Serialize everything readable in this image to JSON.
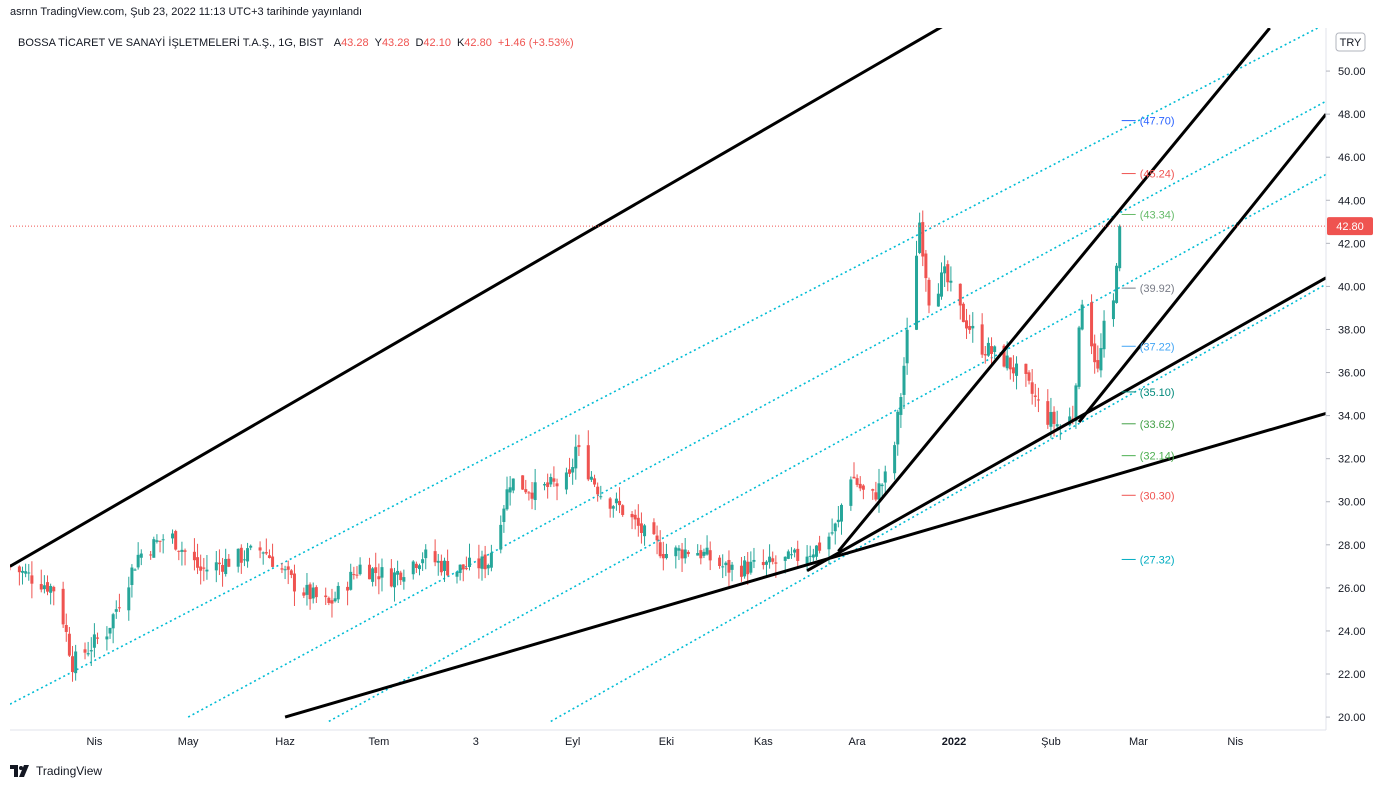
{
  "header": {
    "published": "asrnn TradingView.com, Şub 23, 2022 11:13 UTC+3 tarihinde yayınlandı",
    "symbol": "BOSSA TİCARET VE SANAYİ İŞLETMELERİ T.A.Ş., 1G, BIST",
    "ohlc": [
      {
        "k": "A",
        "v": "43.28"
      },
      {
        "k": "Y",
        "v": "43.28"
      },
      {
        "k": "D",
        "v": "42.10"
      },
      {
        "k": "K",
        "v": "42.80"
      }
    ],
    "change": "+1.46 (+3.53%)"
  },
  "currency": "TRY",
  "footer": {
    "brand": "TradingView",
    "logo": "tradingview-logo-icon"
  },
  "colors": {
    "up": "#26a69a",
    "down": "#ef5350",
    "channel": "#00bcd4",
    "trend": "#000000",
    "last": "#ef5350"
  },
  "chart_data": {
    "type": "candlestick",
    "title": "BOSSA TİCARET VE SANAYİ İŞLETMELERİ T.A.Ş., 1G, BIST",
    "ylim": [
      19.4,
      52.0
    ],
    "xlim": [
      "2021-03-05",
      "2022-04-30"
    ],
    "y_ticks": [
      "20.00",
      "22.00",
      "24.00",
      "26.00",
      "28.00",
      "30.00",
      "32.00",
      "34.00",
      "36.00",
      "38.00",
      "40.00",
      "42.00",
      "44.00",
      "46.00",
      "48.00",
      "50.00"
    ],
    "x_ticks": [
      {
        "date": "2021-04-01",
        "label": "Nis",
        "bold": false
      },
      {
        "date": "2021-05-01",
        "label": "May",
        "bold": false
      },
      {
        "date": "2021-06-01",
        "label": "Haz",
        "bold": false
      },
      {
        "date": "2021-07-01",
        "label": "Tem",
        "bold": false
      },
      {
        "date": "2021-08-01",
        "label": "3",
        "bold": false
      },
      {
        "date": "2021-09-01",
        "label": "Eyl",
        "bold": false
      },
      {
        "date": "2021-10-01",
        "label": "Eki",
        "bold": false
      },
      {
        "date": "2021-11-01",
        "label": "Kas",
        "bold": false
      },
      {
        "date": "2021-12-01",
        "label": "Ara",
        "bold": false
      },
      {
        "date": "2022-01-01",
        "label": "2022",
        "bold": true
      },
      {
        "date": "2022-02-01",
        "label": "Şub",
        "bold": false
      },
      {
        "date": "2022-03-01",
        "label": "Mar",
        "bold": false
      },
      {
        "date": "2022-04-01",
        "label": "Nis",
        "bold": false
      }
    ],
    "last_price": "42.80",
    "anchors": [
      {
        "date": "2021-03-05",
        "price": 27.0
      },
      {
        "date": "2021-03-20",
        "price": 25.9
      },
      {
        "date": "2021-03-25",
        "price": 22.5
      },
      {
        "date": "2021-04-05",
        "price": 24.0
      },
      {
        "date": "2021-04-15",
        "price": 27.5
      },
      {
        "date": "2021-04-25",
        "price": 28.5
      },
      {
        "date": "2021-05-05",
        "price": 26.8
      },
      {
        "date": "2021-05-15",
        "price": 27.3
      },
      {
        "date": "2021-05-25",
        "price": 27.8
      },
      {
        "date": "2021-06-05",
        "price": 26.0
      },
      {
        "date": "2021-06-15",
        "price": 25.2
      },
      {
        "date": "2021-06-25",
        "price": 27.0
      },
      {
        "date": "2021-07-05",
        "price": 26.5
      },
      {
        "date": "2021-07-15",
        "price": 27.5
      },
      {
        "date": "2021-07-25",
        "price": 26.8
      },
      {
        "date": "2021-08-05",
        "price": 27.2
      },
      {
        "date": "2021-08-12",
        "price": 31.0
      },
      {
        "date": "2021-08-20",
        "price": 30.5
      },
      {
        "date": "2021-08-31",
        "price": 31.0
      },
      {
        "date": "2021-09-02",
        "price": 32.5
      },
      {
        "date": "2021-09-10",
        "price": 30.4
      },
      {
        "date": "2021-09-18",
        "price": 29.5
      },
      {
        "date": "2021-09-25",
        "price": 28.3
      },
      {
        "date": "2021-10-01",
        "price": 27.6
      },
      {
        "date": "2021-10-10",
        "price": 27.8
      },
      {
        "date": "2021-10-20",
        "price": 26.9
      },
      {
        "date": "2021-11-01",
        "price": 27.0
      },
      {
        "date": "2021-11-10",
        "price": 27.3
      },
      {
        "date": "2021-11-20",
        "price": 28.0
      },
      {
        "date": "2021-11-25",
        "price": 29.0
      },
      {
        "date": "2021-11-28",
        "price": 31.5
      },
      {
        "date": "2021-12-05",
        "price": 30.0
      },
      {
        "date": "2021-12-12",
        "price": 31.5
      },
      {
        "date": "2021-12-15",
        "price": 35.0
      },
      {
        "date": "2021-12-18",
        "price": 39.0
      },
      {
        "date": "2021-12-21",
        "price": 43.0
      },
      {
        "date": "2021-12-24",
        "price": 39.5
      },
      {
        "date": "2021-12-29",
        "price": 40.5
      },
      {
        "date": "2022-01-03",
        "price": 38.8
      },
      {
        "date": "2022-01-10",
        "price": 37.2
      },
      {
        "date": "2022-01-18",
        "price": 36.5
      },
      {
        "date": "2022-01-24",
        "price": 35.5
      },
      {
        "date": "2022-01-30",
        "price": 34.0
      },
      {
        "date": "2022-02-04",
        "price": 33.5
      },
      {
        "date": "2022-02-08",
        "price": 34.0
      },
      {
        "date": "2022-02-11",
        "price": 39.5
      },
      {
        "date": "2022-02-14",
        "price": 37.5
      },
      {
        "date": "2022-02-16",
        "price": 36.0
      },
      {
        "date": "2022-02-18",
        "price": 38.0
      },
      {
        "date": "2022-02-20",
        "price": 37.0
      },
      {
        "date": "2022-02-22",
        "price": 41.34
      },
      {
        "date": "2022-02-23",
        "price": 42.8
      }
    ],
    "trendlines": [
      {
        "from": {
          "date": "2021-03-05",
          "price": 27.0
        },
        "to": {
          "date": "2021-12-31",
          "price": 52.3
        }
      },
      {
        "from": {
          "date": "2021-06-01",
          "price": 20.0
        },
        "to": {
          "date": "2022-04-30",
          "price": 34.1
        }
      },
      {
        "from": {
          "date": "2021-11-15",
          "price": 26.8
        },
        "to": {
          "date": "2022-04-30",
          "price": 40.4
        }
      },
      {
        "from": {
          "date": "2021-11-25",
          "price": 27.7
        },
        "to": {
          "date": "2022-04-12",
          "price": 52.0
        }
      },
      {
        "from": {
          "date": "2022-02-10",
          "price": 33.7
        },
        "to": {
          "date": "2022-04-30",
          "price": 48.0
        }
      }
    ],
    "channel_lines": [
      {
        "from": {
          "date": "2021-03-05",
          "price": 20.6
        },
        "to": {
          "date": "2022-04-30",
          "price": 52.2
        }
      },
      {
        "from": {
          "date": "2021-05-01",
          "price": 20.0
        },
        "to": {
          "date": "2022-04-30",
          "price": 48.6
        }
      },
      {
        "from": {
          "date": "2021-06-15",
          "price": 19.8
        },
        "to": {
          "date": "2022-04-30",
          "price": 45.2
        }
      },
      {
        "from": {
          "date": "2021-08-25",
          "price": 19.8
        },
        "to": {
          "date": "2022-04-30",
          "price": 40.1
        }
      }
    ],
    "fib_levels": [
      {
        "price": 47.7,
        "label": "(47.70)",
        "color": "#2962ff"
      },
      {
        "price": 45.24,
        "label": "(45.24)",
        "color": "#ef5350"
      },
      {
        "price": 43.34,
        "label": "(43.34)",
        "color": "#66bb6a"
      },
      {
        "price": 39.92,
        "label": "(39.92)",
        "color": "#787b86"
      },
      {
        "price": 37.22,
        "label": "(37.22)",
        "color": "#42a5f5"
      },
      {
        "price": 35.1,
        "label": "(35.10)",
        "color": "#00897b"
      },
      {
        "price": 33.62,
        "label": "(33.62)",
        "color": "#43a047"
      },
      {
        "price": 32.14,
        "label": "(32.14)",
        "color": "#4caf50"
      },
      {
        "price": 30.3,
        "label": "(30.30)",
        "color": "#ef5350"
      },
      {
        "price": 27.32,
        "label": "(27.32)",
        "color": "#00acc1"
      }
    ],
    "fib_date": "2022-02-23"
  }
}
